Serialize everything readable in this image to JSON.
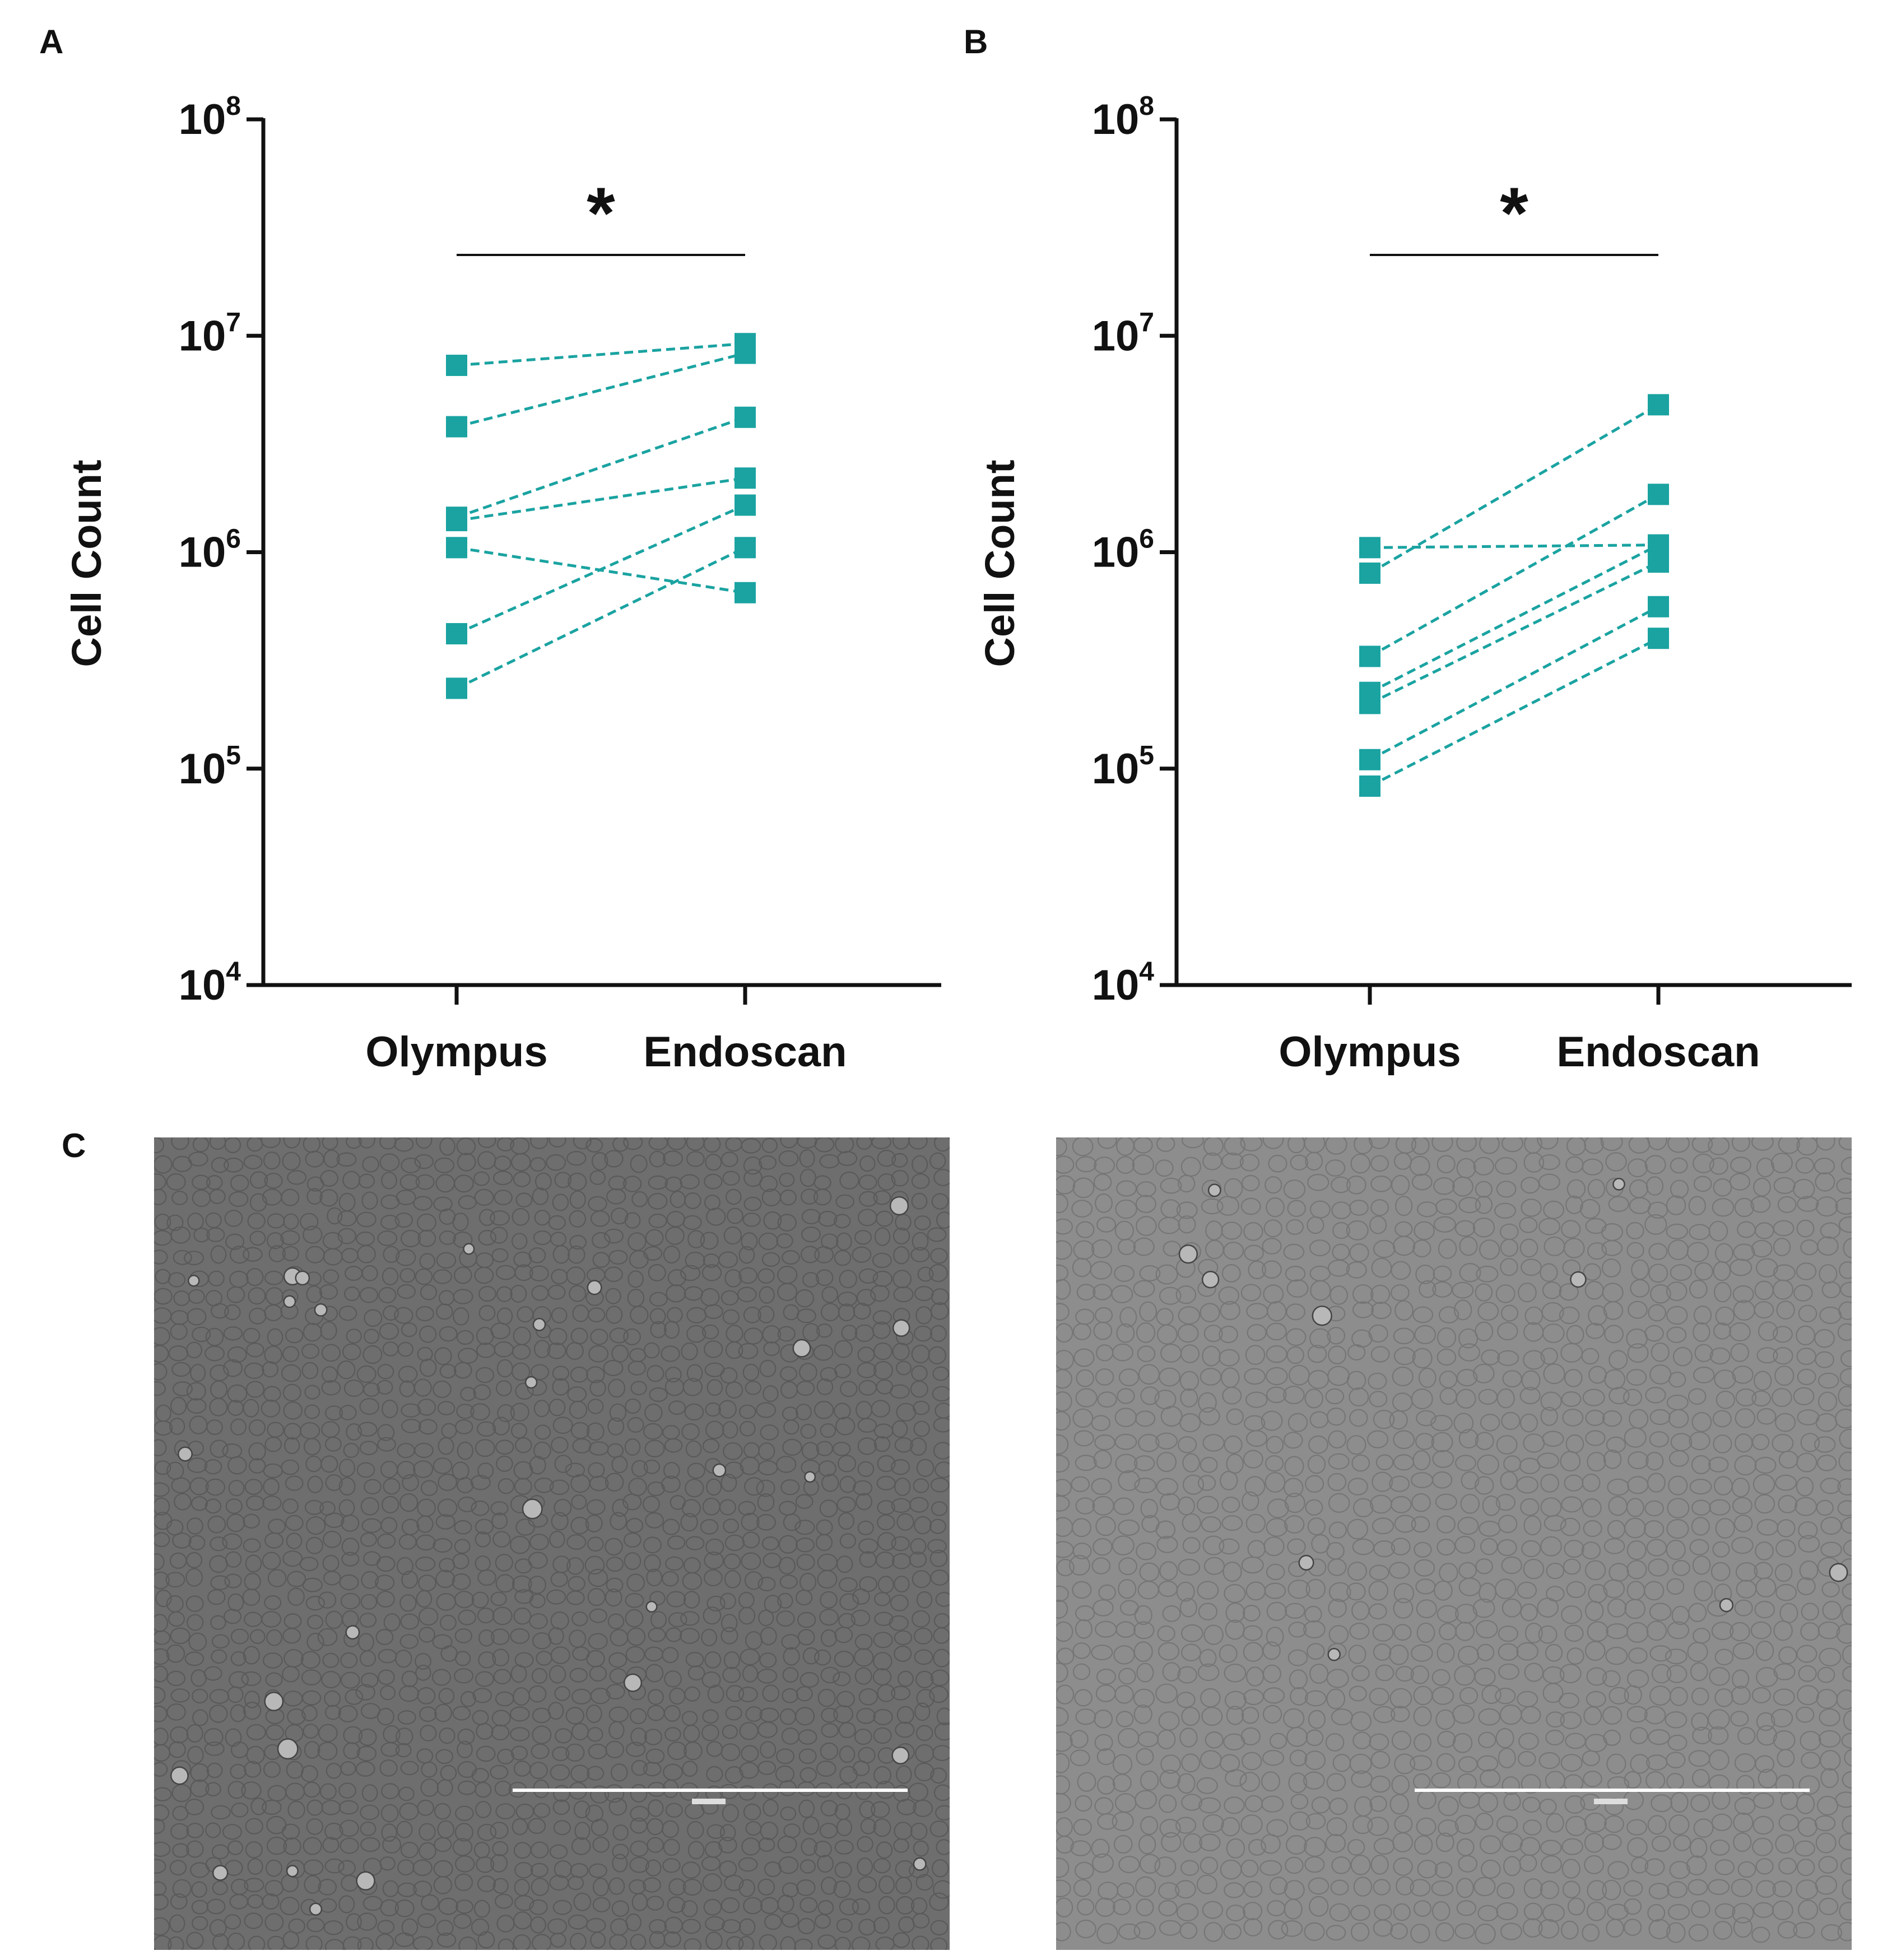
{
  "panels": {
    "a": "A",
    "b": "B",
    "c": "C"
  },
  "colors": {
    "series": "#1aa3a1",
    "axis": "#111111"
  },
  "chart_data": [
    {
      "type": "line",
      "panel": "A",
      "ylabel": "Cell Count",
      "xlabel": "",
      "yscale": "log10",
      "ylim": [
        10000,
        100000000
      ],
      "yticks": [
        {
          "value": 10000,
          "base": "10",
          "exp": "4"
        },
        {
          "value": 100000,
          "base": "10",
          "exp": "5"
        },
        {
          "value": 1000000,
          "base": "10",
          "exp": "6"
        },
        {
          "value": 10000000,
          "base": "10",
          "exp": "7"
        },
        {
          "value": 100000000,
          "base": "10",
          "exp": "8"
        }
      ],
      "categories": [
        "Olympus",
        "Endoscan"
      ],
      "significance": "*",
      "pairs": [
        [
          7300000,
          9200000
        ],
        [
          3800000,
          8300000
        ],
        [
          1450000,
          4200000
        ],
        [
          1400000,
          2200000
        ],
        [
          1050000,
          650000
        ],
        [
          420000,
          1650000
        ],
        [
          235000,
          1050000
        ]
      ]
    },
    {
      "type": "line",
      "panel": "B",
      "ylabel": "Cell Count",
      "xlabel": "",
      "yscale": "log10",
      "ylim": [
        10000,
        100000000
      ],
      "yticks": [
        {
          "value": 10000,
          "base": "10",
          "exp": "4"
        },
        {
          "value": 100000,
          "base": "10",
          "exp": "5"
        },
        {
          "value": 1000000,
          "base": "10",
          "exp": "6"
        },
        {
          "value": 10000000,
          "base": "10",
          "exp": "7"
        },
        {
          "value": 100000000,
          "base": "10",
          "exp": "8"
        }
      ],
      "categories": [
        "Olympus",
        "Endoscan"
      ],
      "significance": "*",
      "pairs": [
        [
          1050000,
          1080000
        ],
        [
          800000,
          4800000
        ],
        [
          330000,
          1850000
        ],
        [
          225000,
          1080000
        ],
        [
          200000,
          900000
        ],
        [
          110000,
          560000
        ],
        [
          83000,
          400000
        ]
      ]
    }
  ],
  "micrographs": [
    {
      "label": "micrograph-left",
      "shade": "#6e6e6e",
      "cell_line": "#5a5a5a"
    },
    {
      "label": "micrograph-right",
      "shade": "#8d8d8d",
      "cell_line": "#767676"
    }
  ]
}
